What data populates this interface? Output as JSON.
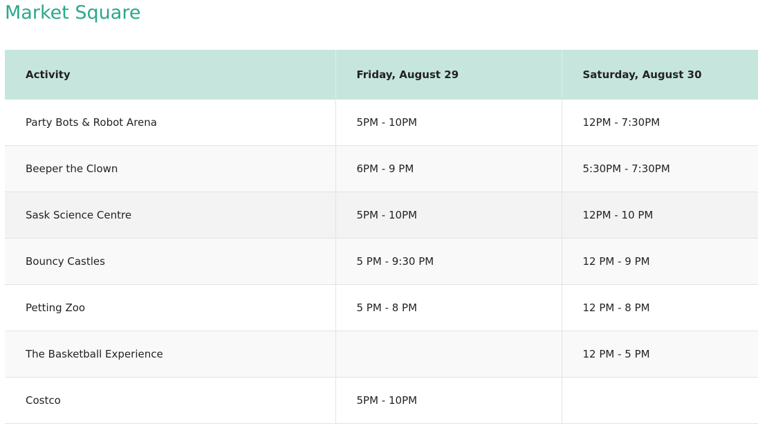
{
  "title": "Market Square",
  "accent_color": "#2aa88a",
  "header_color": "#c6e6dd",
  "table": {
    "headers": [
      "Activity",
      "Friday, August 29",
      "Saturday, August 30"
    ],
    "rows": [
      [
        "Party Bots & Robot Arena",
        "5PM - 10PM",
        "12PM - 7:30PM"
      ],
      [
        "Beeper the Clown",
        "6PM - 9 PM",
        "5:30PM - 7:30PM"
      ],
      [
        "Sask Science Centre",
        "5PM - 10PM",
        "12PM - 10 PM"
      ],
      [
        "Bouncy Castles",
        "5 PM - 9:30 PM",
        "12 PM - 9 PM"
      ],
      [
        "Petting Zoo",
        "5 PM - 8 PM",
        "12 PM - 8 PM"
      ],
      [
        "The Basketball Experience",
        "",
        "12 PM - 5 PM"
      ],
      [
        "Costco",
        "5PM - 10PM",
        ""
      ]
    ]
  }
}
